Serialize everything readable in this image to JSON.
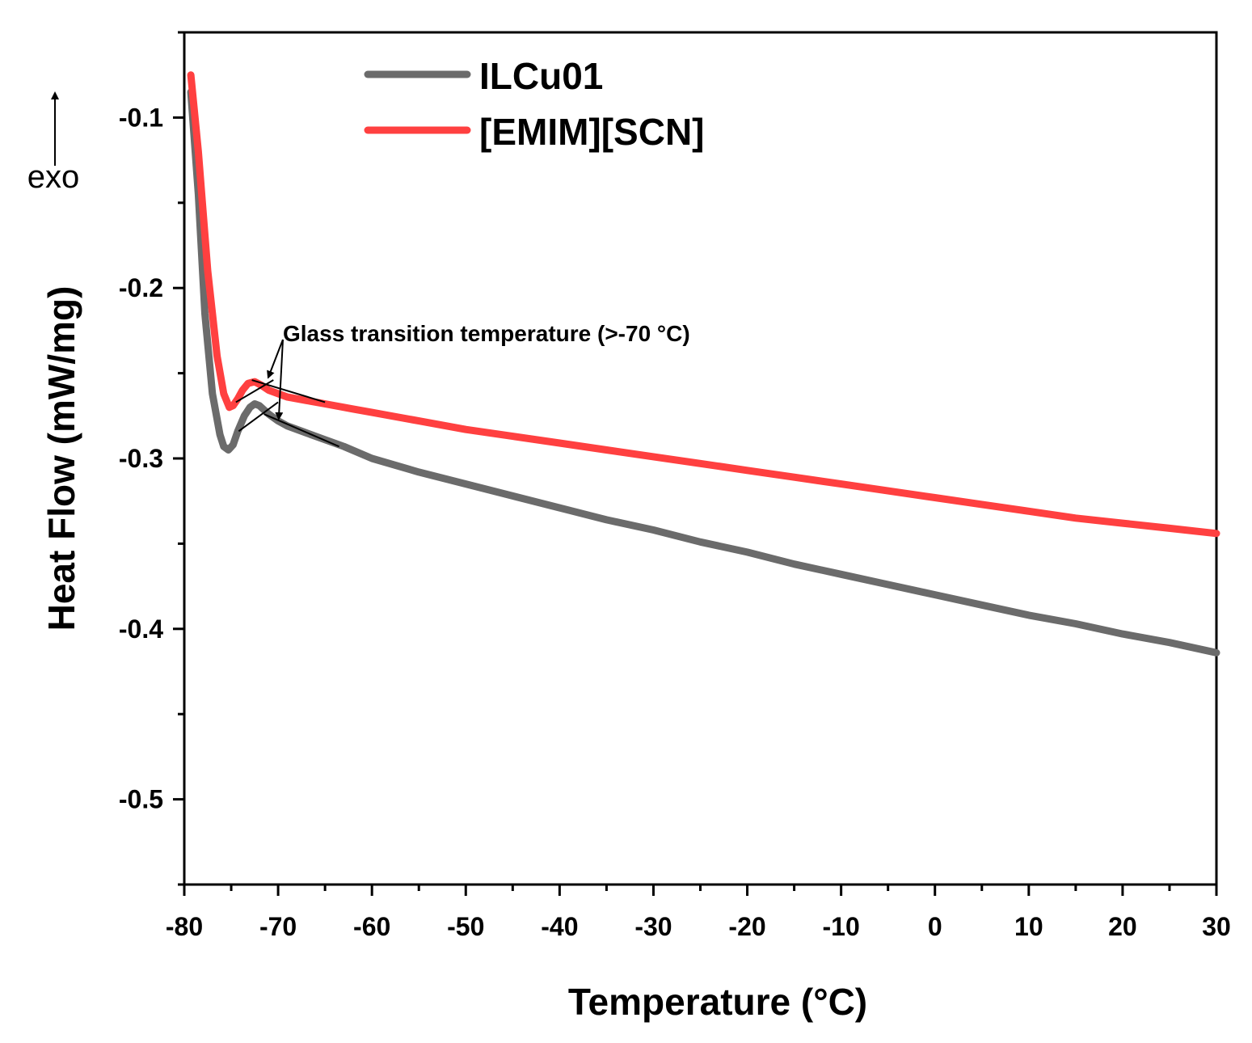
{
  "chart_data": {
    "type": "line",
    "title": "",
    "xlabel": "Temperature (°C)",
    "ylabel": "Heat Flow (mW/mg)",
    "xlim": [
      -80,
      30
    ],
    "ylim": [
      -0.55,
      -0.05
    ],
    "x_ticks": [
      -80,
      -70,
      -60,
      -50,
      -40,
      -30,
      -20,
      -10,
      0,
      10,
      20,
      30
    ],
    "x_tick_labels": [
      "-80",
      "-70",
      "-60",
      "-50",
      "-40",
      "-30",
      "-20",
      "-10",
      "0",
      "10",
      "20",
      "30"
    ],
    "y_ticks": [
      -0.1,
      -0.2,
      -0.3,
      -0.4,
      -0.5
    ],
    "y_tick_labels": [
      "-0.1",
      "-0.2",
      "-0.3",
      "-0.4",
      "-0.5"
    ],
    "y_minor_ticks": [
      -0.05,
      -0.15,
      -0.25,
      -0.35,
      -0.45,
      -0.55
    ],
    "grid": false,
    "legend_position": "top-center",
    "series": [
      {
        "name": "ILCu01",
        "color": "#6b6b6b",
        "x": [
          -79.3,
          -78.5,
          -77.8,
          -77.0,
          -76.2,
          -75.8,
          -75.3,
          -74.8,
          -74.3,
          -73.6,
          -73.0,
          -72.5,
          -72.0,
          -71.0,
          -70.0,
          -69.0,
          -67.0,
          -65.0,
          -63.0,
          -60.0,
          -55.0,
          -50.0,
          -45.0,
          -40.0,
          -35.0,
          -30.0,
          -25.0,
          -20.0,
          -15.0,
          -10.0,
          -5.0,
          0.0,
          5.0,
          10.0,
          15.0,
          20.0,
          25.0,
          30.0
        ],
        "y": [
          -0.085,
          -0.145,
          -0.215,
          -0.262,
          -0.286,
          -0.293,
          -0.295,
          -0.292,
          -0.284,
          -0.275,
          -0.27,
          -0.268,
          -0.269,
          -0.274,
          -0.278,
          -0.281,
          -0.285,
          -0.289,
          -0.293,
          -0.3,
          -0.308,
          -0.315,
          -0.322,
          -0.329,
          -0.336,
          -0.342,
          -0.349,
          -0.355,
          -0.362,
          -0.368,
          -0.374,
          -0.38,
          -0.386,
          -0.392,
          -0.397,
          -0.403,
          -0.408,
          -0.414
        ]
      },
      {
        "name": "[EMIM][SCN]",
        "color": "#ff4040",
        "x": [
          -79.3,
          -78.5,
          -77.5,
          -76.5,
          -75.8,
          -75.2,
          -74.8,
          -74.3,
          -73.8,
          -73.2,
          -72.5,
          -71.8,
          -71.0,
          -70.0,
          -69.0,
          -67.0,
          -65.0,
          -62.0,
          -60.0,
          -55.0,
          -50.0,
          -45.0,
          -40.0,
          -35.0,
          -30.0,
          -25.0,
          -20.0,
          -15.0,
          -10.0,
          -5.0,
          0.0,
          5.0,
          10.0,
          15.0,
          20.0,
          25.0,
          30.0
        ],
        "y": [
          -0.075,
          -0.12,
          -0.19,
          -0.24,
          -0.262,
          -0.27,
          -0.269,
          -0.265,
          -0.26,
          -0.256,
          -0.255,
          -0.257,
          -0.26,
          -0.262,
          -0.264,
          -0.266,
          -0.268,
          -0.271,
          -0.273,
          -0.278,
          -0.283,
          -0.287,
          -0.291,
          -0.295,
          -0.299,
          -0.303,
          -0.307,
          -0.311,
          -0.315,
          -0.319,
          -0.323,
          -0.327,
          -0.331,
          -0.335,
          -0.338,
          -0.341,
          -0.344
        ]
      }
    ],
    "annotations": {
      "glass_transition": "Glass transition temperature (>-70 °C)",
      "exo_label": "exo"
    }
  }
}
